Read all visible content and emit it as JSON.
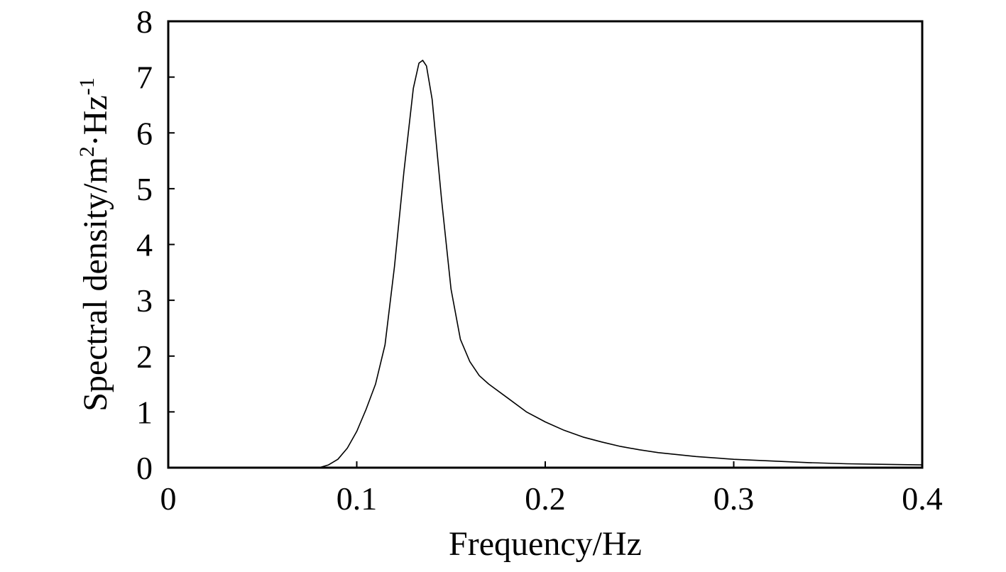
{
  "chart_data": {
    "type": "line",
    "title": "",
    "xlabel": "Frequency/Hz",
    "ylabel": {
      "base": "Spectral density/m",
      "sup1": "2",
      "mid": "·Hz",
      "sup2": "-1"
    },
    "xlim": [
      0,
      0.4
    ],
    "ylim": [
      0,
      8
    ],
    "xticks": [
      0,
      0.1,
      0.2,
      0.3,
      0.4
    ],
    "xtick_labels": [
      "0",
      "0.1",
      "0.2",
      "0.3",
      "0.4"
    ],
    "yticks": [
      0,
      1,
      2,
      3,
      4,
      5,
      6,
      7,
      8
    ],
    "ytick_labels": [
      "0",
      "1",
      "2",
      "3",
      "4",
      "5",
      "6",
      "7",
      "8"
    ],
    "grid": false,
    "series": [
      {
        "color": "#000000",
        "x": [
          0,
          0.07,
          0.08,
          0.085,
          0.09,
          0.095,
          0.1,
          0.105,
          0.11,
          0.115,
          0.12,
          0.125,
          0.13,
          0.133,
          0.135,
          0.137,
          0.14,
          0.145,
          0.15,
          0.155,
          0.16,
          0.165,
          0.17,
          0.18,
          0.19,
          0.2,
          0.21,
          0.22,
          0.23,
          0.24,
          0.25,
          0.26,
          0.28,
          0.3,
          0.32,
          0.34,
          0.36,
          0.38,
          0.4
        ],
        "y": [
          0,
          0,
          0,
          0.05,
          0.15,
          0.35,
          0.65,
          1.05,
          1.5,
          2.2,
          3.6,
          5.3,
          6.8,
          7.25,
          7.3,
          7.2,
          6.6,
          4.8,
          3.2,
          2.3,
          1.9,
          1.65,
          1.5,
          1.25,
          1.0,
          0.82,
          0.67,
          0.55,
          0.46,
          0.38,
          0.32,
          0.27,
          0.2,
          0.15,
          0.12,
          0.09,
          0.07,
          0.06,
          0.05
        ]
      }
    ]
  }
}
